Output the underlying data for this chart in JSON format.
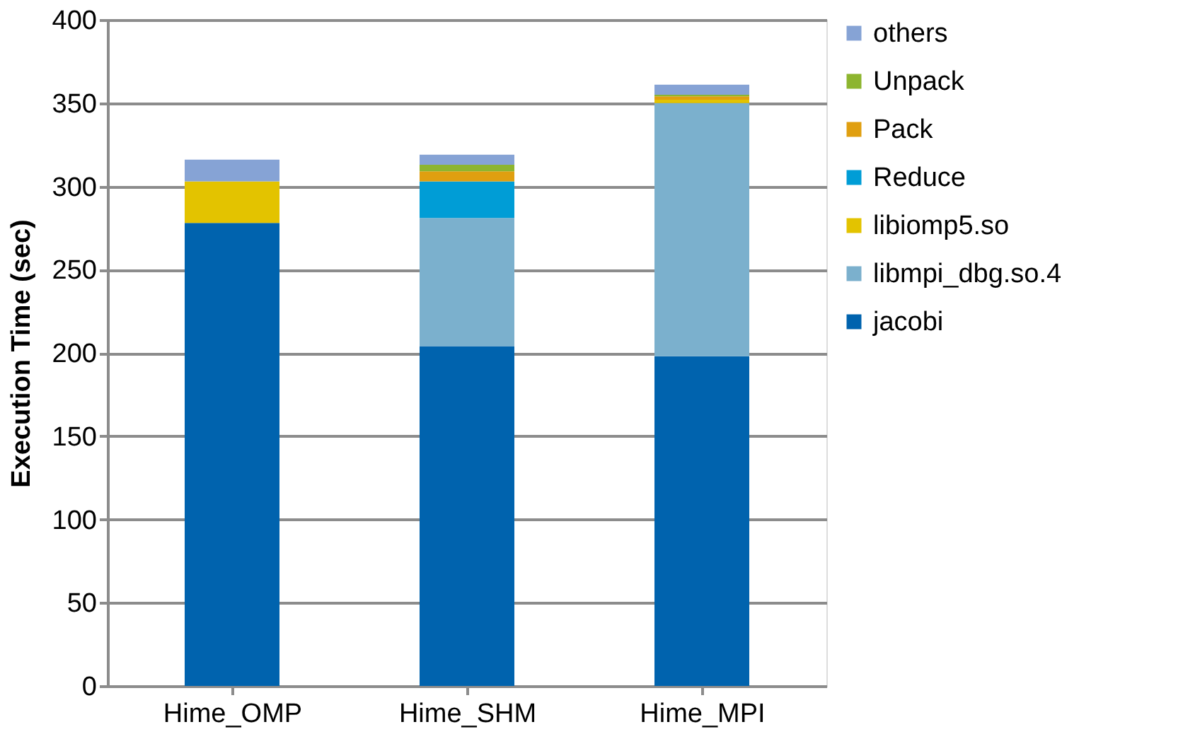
{
  "chart_data": {
    "type": "bar",
    "stacked": true,
    "ylabel": "Execution Time (sec)",
    "categories": [
      "Hime_OMP",
      "Hime_SHM",
      "Hime_MPI"
    ],
    "series": [
      {
        "name": "jacobi",
        "color": "#0063ae",
        "values": [
          278,
          204,
          198
        ]
      },
      {
        "name": "libmpi_dbg.so.4",
        "color": "#7bb0cd",
        "values": [
          null,
          77,
          152
        ]
      },
      {
        "name": "libiomp5.so",
        "color": "#e3c300",
        "values": [
          25,
          null,
          2
        ]
      },
      {
        "name": "Reduce",
        "color": "#009dd6",
        "values": [
          null,
          22,
          null
        ]
      },
      {
        "name": "Pack",
        "color": "#e09f10",
        "values": [
          null,
          6,
          2
        ]
      },
      {
        "name": "Unpack",
        "color": "#8db52f",
        "values": [
          null,
          4,
          1
        ]
      },
      {
        "name": "others",
        "color": "#86a3d5",
        "values": [
          13,
          6,
          6
        ]
      }
    ],
    "ylim": [
      0,
      400
    ],
    "yticks": [
      0,
      50,
      100,
      150,
      200,
      250,
      300,
      350,
      400
    ],
    "grid": "y",
    "legend": "right"
  }
}
